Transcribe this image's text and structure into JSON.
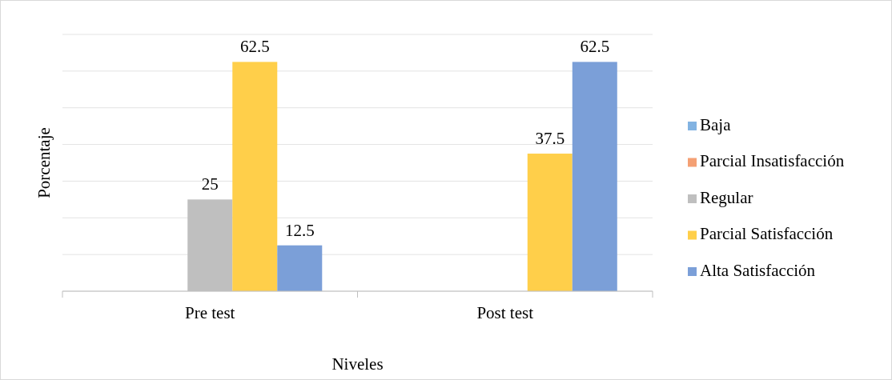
{
  "chart_data": {
    "type": "bar",
    "xlabel": "Niveles",
    "ylabel": "Porcentaje",
    "categories": [
      "Pre test",
      "Post test"
    ],
    "series": [
      {
        "name": "Baja",
        "color": "#82b3e2",
        "values": [
          0,
          0
        ],
        "value_labels": [
          null,
          null
        ]
      },
      {
        "name": "Parcial Insatisfacción",
        "color": "#f4a074",
        "values": [
          0,
          0
        ],
        "value_labels": [
          null,
          null
        ]
      },
      {
        "name": "Regular",
        "color": "#bfbfbf",
        "values": [
          25,
          0
        ],
        "value_labels": [
          "25",
          null
        ]
      },
      {
        "name": "Parcial Satisfacción",
        "color": "#ffcf4a",
        "values": [
          62.5,
          37.5
        ],
        "value_labels": [
          "62.5",
          "37.5"
        ]
      },
      {
        "name": "Alta Satisfacción",
        "color": "#7b9fd8",
        "values": [
          12.5,
          62.5
        ],
        "value_labels": [
          "12.5",
          "62.5"
        ]
      }
    ],
    "ylim": [
      0,
      70
    ],
    "yticks": [
      {
        "value": 0,
        "label": null
      },
      {
        "value": 10,
        "label": null
      },
      {
        "value": 20,
        "label": null
      },
      {
        "value": 30,
        "label": null
      },
      {
        "value": 40,
        "label": null
      },
      {
        "value": 50,
        "label": null
      },
      {
        "value": 60,
        "label": null
      },
      {
        "value": 70,
        "label": null
      }
    ],
    "tick_labels": "x",
    "grid": "y",
    "legend": "right"
  }
}
